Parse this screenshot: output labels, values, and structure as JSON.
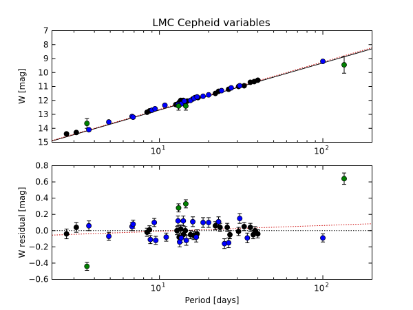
{
  "chart_data": [
    {
      "type": "scatter",
      "title": "LMC Cepheid variables",
      "xlabel": "",
      "ylabel": "W [mag]",
      "xscale": "log",
      "xlim": [
        2.2,
        200
      ],
      "ylim": [
        15,
        7
      ],
      "y_inverted": true,
      "xticks": [
        {
          "base": "10",
          "exp": "1",
          "value": 10
        },
        {
          "base": "10",
          "exp": "2",
          "value": 100
        }
      ],
      "yticks": [
        7,
        8,
        9,
        10,
        11,
        12,
        13,
        14,
        15
      ],
      "fits": [
        {
          "name": "fit",
          "style": "solid",
          "color": "#000000",
          "x": [
            2.2,
            200
          ],
          "y": [
            14.91,
            8.3
          ]
        },
        {
          "name": "fit-alt",
          "style": "dotted",
          "color": "#cc0000",
          "x": [
            2.2,
            200
          ],
          "y": [
            14.88,
            8.22
          ]
        }
      ],
      "series": [
        {
          "name": "black",
          "color": "#000000",
          "points": [
            {
              "x": 2.7,
              "y": 14.4,
              "err": 0.06
            },
            {
              "x": 3.1,
              "y": 14.3,
              "err": 0.06
            },
            {
              "x": 8.4,
              "y": 12.85,
              "err": 0.06
            },
            {
              "x": 8.7,
              "y": 12.75,
              "err": 0.06
            },
            {
              "x": 12.6,
              "y": 12.3,
              "err": 0.07
            },
            {
              "x": 13.2,
              "y": 12.15,
              "err": 0.07
            },
            {
              "x": 13.5,
              "y": 12.0,
              "err": 0.07
            },
            {
              "x": 13.8,
              "y": 12.1,
              "err": 0.07
            },
            {
              "x": 14.0,
              "y": 12.0,
              "err": 0.07
            },
            {
              "x": 14.3,
              "y": 12.2,
              "err": 0.07
            },
            {
              "x": 14.8,
              "y": 12.05,
              "err": 0.07
            },
            {
              "x": 16.0,
              "y": 11.9,
              "err": 0.07
            },
            {
              "x": 16.5,
              "y": 11.8,
              "err": 0.07
            },
            {
              "x": 17.2,
              "y": 11.8,
              "err": 0.07
            },
            {
              "x": 22.0,
              "y": 11.5,
              "err": 0.07
            },
            {
              "x": 23.0,
              "y": 11.35,
              "err": 0.07
            },
            {
              "x": 26.5,
              "y": 11.2,
              "err": 0.07
            },
            {
              "x": 30.5,
              "y": 11.0,
              "err": 0.07
            },
            {
              "x": 33.0,
              "y": 10.95,
              "err": 0.07
            },
            {
              "x": 36.0,
              "y": 10.7,
              "err": 0.07
            },
            {
              "x": 38.0,
              "y": 10.65,
              "err": 0.07
            },
            {
              "x": 40.0,
              "y": 10.55,
              "err": 0.07
            }
          ]
        },
        {
          "name": "blue",
          "color": "#0000ff",
          "points": [
            {
              "x": 3.7,
              "y": 14.1,
              "err": 0.06
            },
            {
              "x": 4.9,
              "y": 13.55,
              "err": 0.06
            },
            {
              "x": 6.8,
              "y": 13.15,
              "err": 0.06
            },
            {
              "x": 6.9,
              "y": 13.2,
              "err": 0.06
            },
            {
              "x": 9.0,
              "y": 12.7,
              "err": 0.06
            },
            {
              "x": 9.4,
              "y": 12.6,
              "err": 0.06
            },
            {
              "x": 10.8,
              "y": 12.35,
              "err": 0.06
            },
            {
              "x": 13.0,
              "y": 12.3,
              "err": 0.07
            },
            {
              "x": 13.6,
              "y": 12.25,
              "err": 0.07
            },
            {
              "x": 14.2,
              "y": 12.05,
              "err": 0.07
            },
            {
              "x": 15.5,
              "y": 12.0,
              "err": 0.07
            },
            {
              "x": 16.3,
              "y": 11.85,
              "err": 0.07
            },
            {
              "x": 17.0,
              "y": 11.75,
              "err": 0.07
            },
            {
              "x": 18.5,
              "y": 11.7,
              "err": 0.07
            },
            {
              "x": 20.0,
              "y": 11.6,
              "err": 0.07
            },
            {
              "x": 24.0,
              "y": 11.3,
              "err": 0.07
            },
            {
              "x": 27.5,
              "y": 11.1,
              "err": 0.07
            },
            {
              "x": 31.0,
              "y": 10.95,
              "err": 0.07
            },
            {
              "x": 100.0,
              "y": 9.2,
              "err": 0.08
            }
          ]
        },
        {
          "name": "green",
          "color": "#008000",
          "points": [
            {
              "x": 3.6,
              "y": 13.65,
              "err": 0.35
            },
            {
              "x": 13.1,
              "y": 12.4,
              "err": 0.3
            },
            {
              "x": 14.5,
              "y": 12.4,
              "err": 0.3
            },
            {
              "x": 135.0,
              "y": 9.45,
              "err": 0.6
            }
          ]
        }
      ]
    },
    {
      "type": "scatter",
      "title": "",
      "xlabel": "Period [days]",
      "ylabel": "W residual [mag]",
      "xscale": "log",
      "xlim": [
        2.2,
        200
      ],
      "ylim": [
        -0.6,
        0.8
      ],
      "xticks": [
        {
          "base": "10",
          "exp": "1",
          "value": 10
        },
        {
          "base": "10",
          "exp": "2",
          "value": 100
        }
      ],
      "yticks": [
        "−0.6",
        "−0.4",
        "−0.2",
        "0.0",
        "0.2",
        "0.4",
        "0.6",
        "0.8"
      ],
      "fits": [
        {
          "name": "zero",
          "style": "dotted",
          "color": "#000000",
          "x": [
            2.2,
            200
          ],
          "y": [
            0.0,
            0.0
          ]
        },
        {
          "name": "fit-alt",
          "style": "dotted",
          "color": "#cc0000",
          "x": [
            2.2,
            200
          ],
          "y": [
            -0.055,
            0.085
          ]
        }
      ],
      "series": [
        {
          "name": "black",
          "color": "#000000",
          "points": [
            {
              "x": 2.7,
              "y": -0.04,
              "err": 0.06
            },
            {
              "x": 3.1,
              "y": 0.04,
              "err": 0.06
            },
            {
              "x": 8.4,
              "y": -0.02,
              "err": 0.05
            },
            {
              "x": 8.7,
              "y": 0.01,
              "err": 0.05
            },
            {
              "x": 12.8,
              "y": 0.0,
              "err": 0.05
            },
            {
              "x": 13.2,
              "y": -0.08,
              "err": 0.05
            },
            {
              "x": 13.5,
              "y": 0.02,
              "err": 0.05
            },
            {
              "x": 14.0,
              "y": -0.05,
              "err": 0.05
            },
            {
              "x": 14.4,
              "y": 0.0,
              "err": 0.05
            },
            {
              "x": 15.5,
              "y": -0.05,
              "err": 0.05
            },
            {
              "x": 16.2,
              "y": -0.06,
              "err": 0.05
            },
            {
              "x": 17.0,
              "y": -0.04,
              "err": 0.05
            },
            {
              "x": 22.0,
              "y": 0.06,
              "err": 0.05
            },
            {
              "x": 23.5,
              "y": 0.04,
              "err": 0.05
            },
            {
              "x": 26.0,
              "y": 0.04,
              "err": 0.05
            },
            {
              "x": 27.0,
              "y": -0.05,
              "err": 0.05
            },
            {
              "x": 30.5,
              "y": -0.01,
              "err": 0.05
            },
            {
              "x": 33.0,
              "y": 0.05,
              "err": 0.05
            },
            {
              "x": 36.0,
              "y": 0.04,
              "err": 0.05
            },
            {
              "x": 37.5,
              "y": -0.05,
              "err": 0.05
            },
            {
              "x": 38.5,
              "y": 0.0,
              "err": 0.05
            },
            {
              "x": 40.0,
              "y": -0.04,
              "err": 0.05
            }
          ]
        },
        {
          "name": "blue",
          "color": "#0000ff",
          "points": [
            {
              "x": 3.7,
              "y": 0.06,
              "err": 0.06
            },
            {
              "x": 4.9,
              "y": -0.07,
              "err": 0.05
            },
            {
              "x": 6.8,
              "y": 0.05,
              "err": 0.05
            },
            {
              "x": 6.9,
              "y": 0.08,
              "err": 0.05
            },
            {
              "x": 8.8,
              "y": -0.11,
              "err": 0.05
            },
            {
              "x": 9.3,
              "y": 0.1,
              "err": 0.05
            },
            {
              "x": 9.5,
              "y": -0.12,
              "err": 0.05
            },
            {
              "x": 11.0,
              "y": -0.08,
              "err": 0.05
            },
            {
              "x": 13.0,
              "y": 0.12,
              "err": 0.06
            },
            {
              "x": 13.3,
              "y": -0.14,
              "err": 0.06
            },
            {
              "x": 13.6,
              "y": -0.09,
              "err": 0.06
            },
            {
              "x": 14.0,
              "y": 0.12,
              "err": 0.06
            },
            {
              "x": 14.6,
              "y": -0.12,
              "err": 0.06
            },
            {
              "x": 16.0,
              "y": 0.11,
              "err": 0.06
            },
            {
              "x": 16.8,
              "y": -0.08,
              "err": 0.06
            },
            {
              "x": 18.5,
              "y": 0.1,
              "err": 0.06
            },
            {
              "x": 20.0,
              "y": 0.1,
              "err": 0.06
            },
            {
              "x": 23.0,
              "y": 0.11,
              "err": 0.06
            },
            {
              "x": 25.0,
              "y": -0.16,
              "err": 0.06
            },
            {
              "x": 26.5,
              "y": -0.15,
              "err": 0.06
            },
            {
              "x": 31.0,
              "y": 0.15,
              "err": 0.06
            },
            {
              "x": 34.5,
              "y": -0.09,
              "err": 0.06
            },
            {
              "x": 100.0,
              "y": -0.09,
              "err": 0.05
            }
          ]
        },
        {
          "name": "green",
          "color": "#008000",
          "points": [
            {
              "x": 3.6,
              "y": -0.44,
              "err": 0.05
            },
            {
              "x": 13.1,
              "y": 0.28,
              "err": 0.05
            },
            {
              "x": 14.5,
              "y": 0.33,
              "err": 0.05
            },
            {
              "x": 135.0,
              "y": 0.64,
              "err": 0.07
            }
          ]
        }
      ]
    }
  ]
}
